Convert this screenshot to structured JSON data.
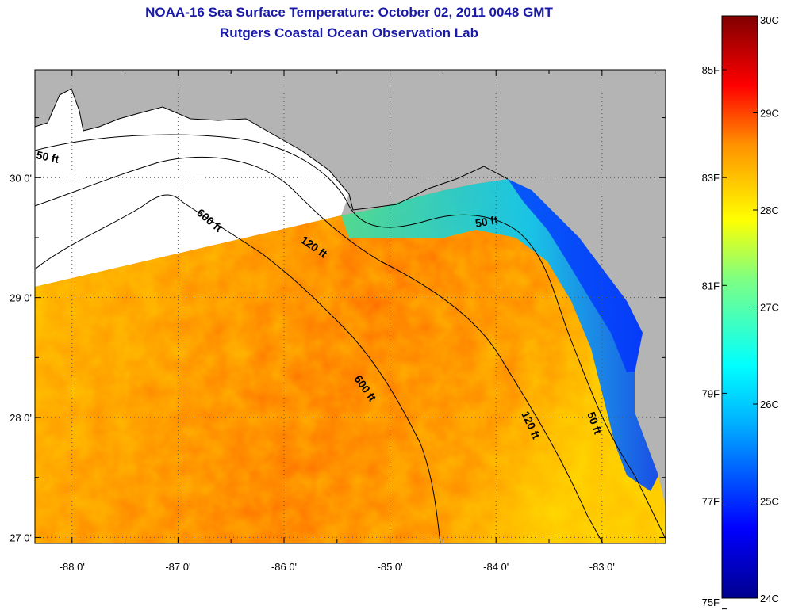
{
  "header": {
    "title": "NOAA-16 Sea Surface Temperature:  October 02, 2011 0048 GMT",
    "subtitle": "Rutgers Coastal Ocean Observation Lab"
  },
  "axes": {
    "x_ticks": [
      "-88 0'",
      "-87 0'",
      "-86 0'",
      "-85 0'",
      "-84 0'",
      "-83 0'"
    ],
    "x_values": [
      -88,
      -87,
      -86,
      -85,
      -84,
      -83
    ],
    "y_ticks": [
      "30 0'",
      "29 0'",
      "28 0'",
      "27 0'"
    ],
    "y_values": [
      30,
      29,
      28,
      27
    ],
    "lon_range": [
      -88.35,
      -82.4
    ],
    "lat_range": [
      26.95,
      30.9
    ],
    "grid": true
  },
  "contour_labels": {
    "fifty_west": "50 ft",
    "six_hundred_north": "600 ft",
    "one_twenty_north": "120 ft",
    "fifty_north": "50 ft",
    "six_hundred_south": "600 ft",
    "one_twenty_south": "120 ft",
    "fifty_south": "50 ft"
  },
  "colorbar": {
    "fahrenheit": [
      "85F",
      "83F",
      "81F",
      "79F",
      "77F",
      "75F"
    ],
    "celsius": [
      "30C",
      "29C",
      "28C",
      "27C",
      "26C",
      "25C",
      "24C"
    ],
    "range_c": [
      24,
      30
    ]
  },
  "colors": {
    "land": "#b4b4b4",
    "no_data": "#ffffff",
    "title": "#1a1aa8"
  }
}
